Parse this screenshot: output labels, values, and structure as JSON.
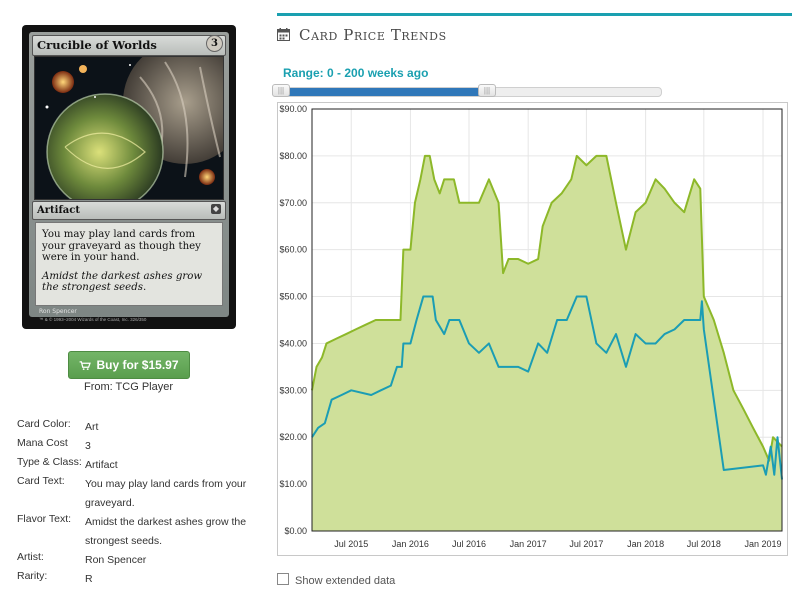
{
  "card": {
    "name": "Crucible of Worlds",
    "mana_symbol": "3",
    "type_line": "Artifact",
    "rules_text": "You may play land cards from your graveyard as though they were in your hand.",
    "flavor_text": "Amidst the darkest ashes grow the strongest seeds.",
    "artist_line": "Ron Spencer",
    "copyright": "™ & © 1993–2004 Wizards of the Coast, Inc. 326/350"
  },
  "buy": {
    "label": "Buy for $15.97",
    "from": "From: TCG Player"
  },
  "details": [
    {
      "label": "Card Color:",
      "value": "Art"
    },
    {
      "label": "Mana Cost",
      "value": "3"
    },
    {
      "label": "Type & Class:",
      "value": "Artifact"
    },
    {
      "label": "Card Text:",
      "value": "You may play land cards from your graveyard."
    },
    {
      "label": "Flavor Text:",
      "value": "Amidst the darkest ashes grow the strongest seeds."
    },
    {
      "label": "Artist:",
      "value": "Ron Spencer"
    },
    {
      "label": "Rarity:",
      "value": "R"
    }
  ],
  "section": {
    "title": "Card Price Trends",
    "icon": "calendar-icon"
  },
  "range": {
    "label": "Range: 0 - 200 weeks ago",
    "min_weeks": 0,
    "max_weeks": 200,
    "selected_from": 0,
    "selected_to": 200
  },
  "checkbox": {
    "label": "Show extended data"
  },
  "chart_data": {
    "type": "area",
    "title": "",
    "xlabel": "",
    "ylabel": "",
    "ylim": [
      0,
      90
    ],
    "yticks": [
      0,
      10,
      20,
      30,
      40,
      50,
      60,
      70,
      80,
      90
    ],
    "ytick_labels": [
      "$0.00",
      "$10.00",
      "$20.00",
      "$30.00",
      "$40.00",
      "$50.00",
      "$60.00",
      "$70.00",
      "$80.00",
      "$90.00"
    ],
    "xlim": [
      "2015-03-01",
      "2019-03-01"
    ],
    "xticks": [
      "2015-07-01",
      "2016-01-01",
      "2016-07-01",
      "2017-01-01",
      "2017-07-01",
      "2018-01-01",
      "2018-07-01",
      "2019-01-01"
    ],
    "xtick_labels": [
      "Jul 2015",
      "Jan 2016",
      "Jul 2016",
      "Jan 2017",
      "Jul 2017",
      "Jan 2018",
      "Jul 2018",
      "Jan 2019"
    ],
    "grid": true,
    "series": [
      {
        "name": "",
        "color": "#8db829",
        "fill": "#cfe09a",
        "points": [
          [
            "2015-03-01",
            30
          ],
          [
            "2015-03-15",
            35
          ],
          [
            "2015-04-01",
            37
          ],
          [
            "2015-04-15",
            40
          ],
          [
            "2015-05-15",
            41
          ],
          [
            "2015-06-15",
            42
          ],
          [
            "2015-07-15",
            43
          ],
          [
            "2015-08-15",
            44
          ],
          [
            "2015-09-15",
            45
          ],
          [
            "2015-10-15",
            45
          ],
          [
            "2015-11-15",
            45
          ],
          [
            "2015-12-01",
            45
          ],
          [
            "2015-12-10",
            60
          ],
          [
            "2016-01-01",
            60
          ],
          [
            "2016-01-15",
            70
          ],
          [
            "2016-02-01",
            75
          ],
          [
            "2016-02-15",
            80
          ],
          [
            "2016-03-01",
            80
          ],
          [
            "2016-03-15",
            75
          ],
          [
            "2016-04-01",
            72
          ],
          [
            "2016-04-15",
            75
          ],
          [
            "2016-05-15",
            75
          ],
          [
            "2016-06-01",
            70
          ],
          [
            "2016-07-01",
            70
          ],
          [
            "2016-08-01",
            70
          ],
          [
            "2016-09-01",
            75
          ],
          [
            "2016-10-01",
            70
          ],
          [
            "2016-10-15",
            55
          ],
          [
            "2016-11-01",
            58
          ],
          [
            "2016-12-01",
            58
          ],
          [
            "2017-01-01",
            57
          ],
          [
            "2017-02-01",
            58
          ],
          [
            "2017-02-15",
            65
          ],
          [
            "2017-03-15",
            70
          ],
          [
            "2017-04-15",
            72
          ],
          [
            "2017-05-15",
            75
          ],
          [
            "2017-06-01",
            80
          ],
          [
            "2017-07-01",
            78
          ],
          [
            "2017-08-01",
            80
          ],
          [
            "2017-09-01",
            80
          ],
          [
            "2017-10-01",
            70
          ],
          [
            "2017-11-01",
            60
          ],
          [
            "2017-12-01",
            68
          ],
          [
            "2018-01-01",
            70
          ],
          [
            "2018-02-01",
            75
          ],
          [
            "2018-03-01",
            73
          ],
          [
            "2018-04-01",
            70
          ],
          [
            "2018-05-01",
            68
          ],
          [
            "2018-06-01",
            75
          ],
          [
            "2018-06-20",
            73
          ],
          [
            "2018-07-01",
            50
          ],
          [
            "2018-08-01",
            45
          ],
          [
            "2018-09-01",
            38
          ],
          [
            "2018-10-01",
            30
          ],
          [
            "2018-11-01",
            26
          ],
          [
            "2018-12-01",
            22
          ],
          [
            "2019-01-01",
            18
          ],
          [
            "2019-01-20",
            15
          ],
          [
            "2019-02-01",
            20
          ],
          [
            "2019-03-01",
            18
          ]
        ]
      },
      {
        "name": "",
        "color": "#1b9db4",
        "points": [
          [
            "2015-03-01",
            20
          ],
          [
            "2015-03-20",
            22
          ],
          [
            "2015-04-10",
            23
          ],
          [
            "2015-05-01",
            28
          ],
          [
            "2015-06-01",
            29
          ],
          [
            "2015-07-01",
            30
          ],
          [
            "2015-09-01",
            29
          ],
          [
            "2015-10-01",
            30
          ],
          [
            "2015-11-01",
            31
          ],
          [
            "2015-11-20",
            35
          ],
          [
            "2015-12-05",
            35
          ],
          [
            "2015-12-10",
            40
          ],
          [
            "2016-01-01",
            40
          ],
          [
            "2016-01-20",
            45
          ],
          [
            "2016-02-10",
            50
          ],
          [
            "2016-03-10",
            50
          ],
          [
            "2016-03-20",
            45
          ],
          [
            "2016-04-15",
            42
          ],
          [
            "2016-05-01",
            45
          ],
          [
            "2016-06-01",
            45
          ],
          [
            "2016-07-01",
            40
          ],
          [
            "2016-08-01",
            38
          ],
          [
            "2016-09-01",
            40
          ],
          [
            "2016-10-01",
            35
          ],
          [
            "2016-11-01",
            35
          ],
          [
            "2016-12-01",
            35
          ],
          [
            "2017-01-01",
            34
          ],
          [
            "2017-02-01",
            40
          ],
          [
            "2017-03-01",
            38
          ],
          [
            "2017-04-01",
            45
          ],
          [
            "2017-05-01",
            45
          ],
          [
            "2017-06-01",
            50
          ],
          [
            "2017-07-01",
            50
          ],
          [
            "2017-08-01",
            40
          ],
          [
            "2017-09-01",
            38
          ],
          [
            "2017-10-01",
            42
          ],
          [
            "2017-11-01",
            35
          ],
          [
            "2017-12-01",
            42
          ],
          [
            "2018-01-01",
            40
          ],
          [
            "2018-02-01",
            40
          ],
          [
            "2018-03-01",
            42
          ],
          [
            "2018-04-01",
            43
          ],
          [
            "2018-05-01",
            45
          ],
          [
            "2018-06-01",
            45
          ],
          [
            "2018-06-20",
            45
          ],
          [
            "2018-06-25",
            49
          ],
          [
            "2018-07-01",
            43
          ],
          [
            "2018-09-01",
            13
          ],
          [
            "2019-01-01",
            14
          ],
          [
            "2019-01-10",
            12
          ],
          [
            "2019-01-25",
            18
          ],
          [
            "2019-02-05",
            12
          ],
          [
            "2019-02-15",
            20
          ],
          [
            "2019-03-01",
            11
          ]
        ]
      }
    ]
  }
}
